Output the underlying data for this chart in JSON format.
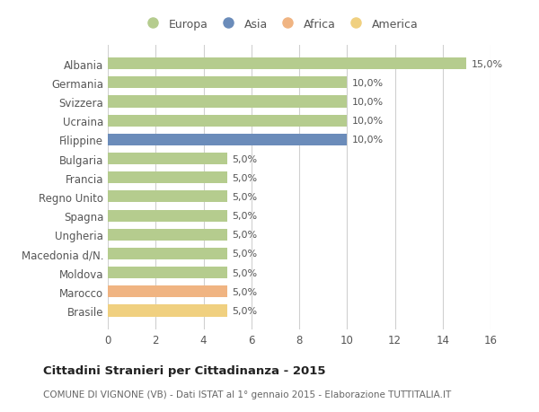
{
  "countries": [
    "Albania",
    "Germania",
    "Svizzera",
    "Ucraina",
    "Filippine",
    "Bulgaria",
    "Francia",
    "Regno Unito",
    "Spagna",
    "Ungheria",
    "Macedonia d/N.",
    "Moldova",
    "Marocco",
    "Brasile"
  ],
  "values": [
    15.0,
    10.0,
    10.0,
    10.0,
    10.0,
    5.0,
    5.0,
    5.0,
    5.0,
    5.0,
    5.0,
    5.0,
    5.0,
    5.0
  ],
  "categories": [
    "Europa",
    "Asia",
    "Africa",
    "America"
  ],
  "bar_colors": [
    "#b5cc8e",
    "#b5cc8e",
    "#b5cc8e",
    "#b5cc8e",
    "#6b8cba",
    "#b5cc8e",
    "#b5cc8e",
    "#b5cc8e",
    "#b5cc8e",
    "#b5cc8e",
    "#b5cc8e",
    "#b5cc8e",
    "#f0b482",
    "#f0d080"
  ],
  "legend_colors": [
    "#b5cc8e",
    "#6b8cba",
    "#f0b482",
    "#f0d080"
  ],
  "xlim": [
    0,
    16
  ],
  "xticks": [
    0,
    2,
    4,
    6,
    8,
    10,
    12,
    14,
    16
  ],
  "title": "Cittadini Stranieri per Cittadinanza - 2015",
  "subtitle": "COMUNE DI VIGNONE (VB) - Dati ISTAT al 1° gennaio 2015 - Elaborazione TUTTITALIA.IT",
  "background_color": "#ffffff",
  "grid_color": "#d0d0d0",
  "bar_height": 0.62
}
